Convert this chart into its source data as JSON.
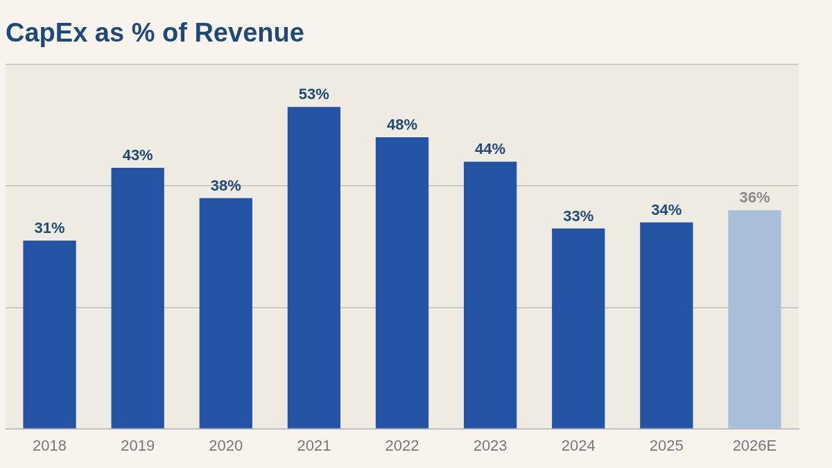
{
  "chart_data": {
    "type": "bar",
    "title": "CapEx as % of Revenue",
    "categories": [
      "2018",
      "2019",
      "2020",
      "2021",
      "2022",
      "2023",
      "2024",
      "2025",
      "2026E"
    ],
    "values": [
      31,
      43,
      38,
      53,
      48,
      44,
      33,
      34,
      36
    ],
    "colors": [
      "#2453a3",
      "#2453a3",
      "#2453a3",
      "#2453a3",
      "#2453a3",
      "#2453a3",
      "#2453a3",
      "#2453a3",
      "#a9bfd9"
    ],
    "value_labels": [
      "31%",
      "43%",
      "38%",
      "53%",
      "48%",
      "44%",
      "33%",
      "34%",
      "36%"
    ],
    "ylim": [
      0,
      60
    ],
    "yticks": [
      {
        "value": 0,
        "label": null
      },
      {
        "value": 20,
        "label": null
      },
      {
        "value": 40,
        "label": null
      },
      {
        "value": 60,
        "label": null
      }
    ],
    "grid": "y",
    "tick_labels": "x",
    "legend": false
  }
}
